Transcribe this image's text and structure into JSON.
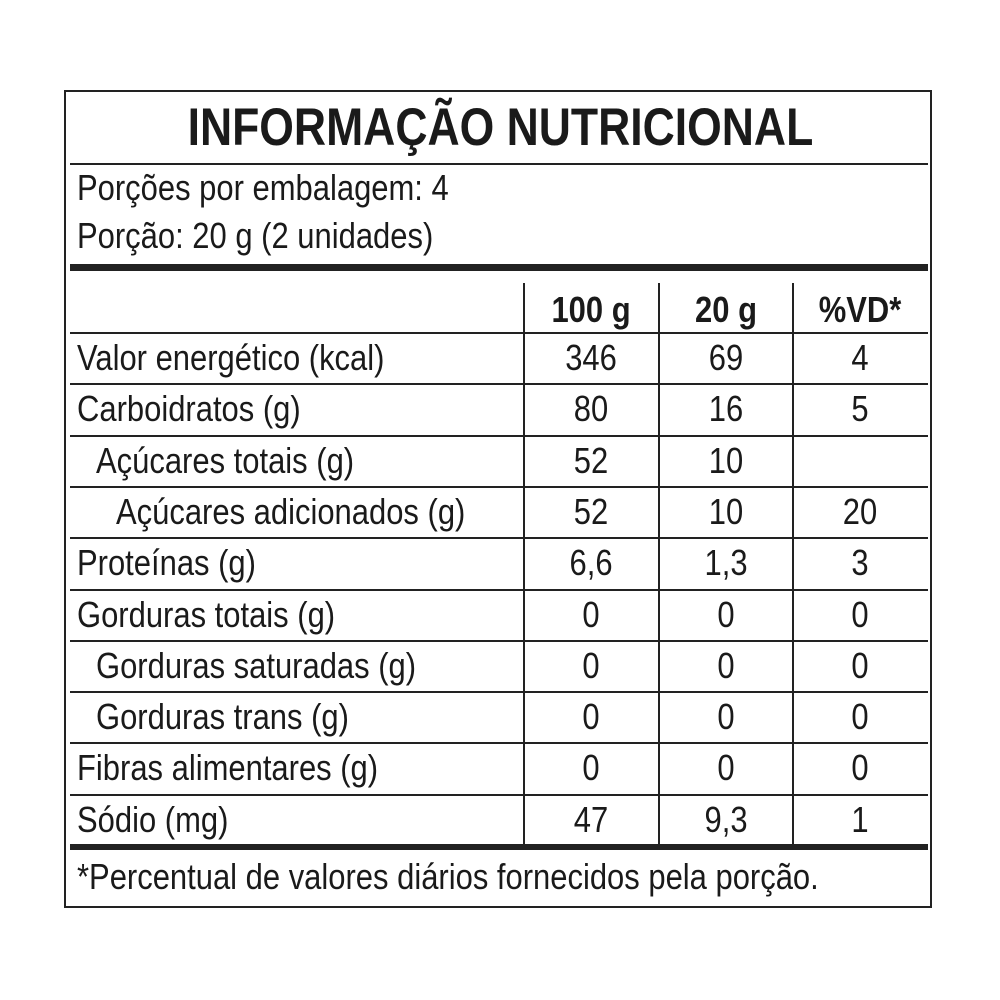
{
  "title": "INFORMAÇÃO NUTRICIONAL",
  "servings_per_package": "Porções por embalagem: 4",
  "serving_size": "Porção: 20 g (2 unidades)",
  "columns": [
    "100 g",
    "20 g",
    "%VD*"
  ],
  "rows": [
    {
      "label": "Valor energético (kcal)",
      "indent": 0,
      "v100": "346",
      "v20": "69",
      "vd": "4"
    },
    {
      "label": "Carboidratos (g)",
      "indent": 0,
      "v100": "80",
      "v20": "16",
      "vd": "5"
    },
    {
      "label": "Açúcares totais (g)",
      "indent": 1,
      "v100": "52",
      "v20": "10",
      "vd": ""
    },
    {
      "label": "Açúcares adicionados (g)",
      "indent": 2,
      "v100": "52",
      "v20": "10",
      "vd": "20"
    },
    {
      "label": "Proteínas (g)",
      "indent": 0,
      "v100": "6,6",
      "v20": "1,3",
      "vd": "3"
    },
    {
      "label": "Gorduras totais (g)",
      "indent": 0,
      "v100": "0",
      "v20": "0",
      "vd": "0"
    },
    {
      "label": "Gorduras saturadas (g)",
      "indent": 1,
      "v100": "0",
      "v20": "0",
      "vd": "0"
    },
    {
      "label": "Gorduras trans (g)",
      "indent": 1,
      "v100": "0",
      "v20": "0",
      "vd": "0"
    },
    {
      "label": "Fibras alimentares (g)",
      "indent": 0,
      "v100": "0",
      "v20": "0",
      "vd": "0"
    },
    {
      "label": "Sódio (mg)",
      "indent": 0,
      "v100": "47",
      "v20": "9,3",
      "vd": "1"
    }
  ],
  "footnote": "*Percentual de valores diários fornecidos pela porção."
}
